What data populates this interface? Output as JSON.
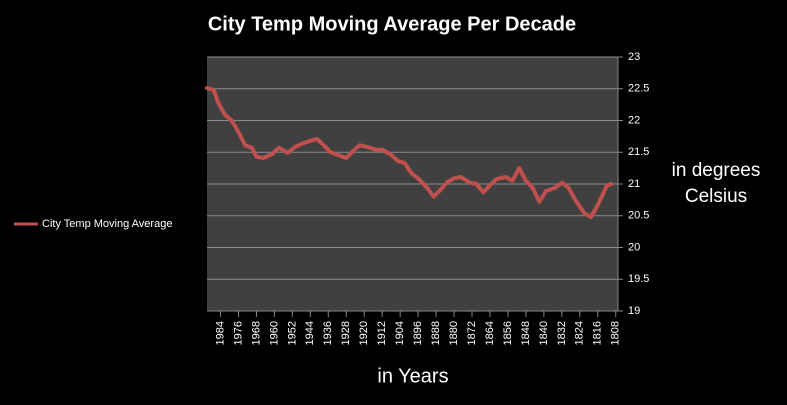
{
  "chart_data": {
    "type": "line",
    "title": "City Temp Moving Average Per Decade",
    "x_label": "in Years",
    "y_label": "in degrees Celsius",
    "xlim": [
      1990,
      1807
    ],
    "xticks": [
      1984,
      1976,
      1968,
      1960,
      1952,
      1944,
      1936,
      1928,
      1920,
      1912,
      1904,
      1896,
      1888,
      1880,
      1872,
      1864,
      1856,
      1848,
      1840,
      1832,
      1824,
      1816,
      1808
    ],
    "ylim": [
      19,
      23
    ],
    "yticks": [
      19,
      19.5,
      20,
      20.5,
      21,
      21.5,
      22,
      22.5,
      23
    ],
    "grid": true,
    "y_axis_side": "right",
    "legend": "left",
    "series": [
      {
        "name": "City Temp Moving Average",
        "color": "#c0504d",
        "x": [
          1990,
          1987,
          1985,
          1982,
          1979,
          1976,
          1973,
          1970,
          1968,
          1965,
          1961,
          1958,
          1954,
          1951,
          1948,
          1944,
          1941,
          1938,
          1935,
          1932,
          1928,
          1925,
          1922,
          1918,
          1915,
          1912,
          1908,
          1905,
          1902,
          1899,
          1896,
          1892,
          1889,
          1886,
          1883,
          1880,
          1877,
          1873,
          1870,
          1867,
          1864,
          1861,
          1857,
          1854,
          1851,
          1848,
          1845,
          1842,
          1839,
          1835,
          1832,
          1829,
          1826,
          1822,
          1819,
          1816,
          1812,
          1810
        ],
        "values": [
          22.51,
          22.48,
          22.28,
          22.09,
          22.0,
          21.82,
          21.61,
          21.57,
          21.43,
          21.41,
          21.47,
          21.57,
          21.49,
          21.58,
          21.63,
          21.68,
          21.71,
          21.61,
          21.5,
          21.46,
          21.41,
          21.52,
          21.61,
          21.58,
          21.54,
          21.54,
          21.46,
          21.36,
          21.33,
          21.17,
          21.09,
          20.94,
          20.8,
          20.91,
          21.03,
          21.09,
          21.11,
          21.02,
          21.0,
          20.87,
          20.98,
          21.08,
          21.11,
          21.05,
          21.25,
          21.05,
          20.94,
          20.72,
          20.89,
          20.94,
          21.02,
          20.94,
          20.75,
          20.54,
          20.48,
          20.67,
          20.97,
          21.0
        ]
      }
    ]
  }
}
